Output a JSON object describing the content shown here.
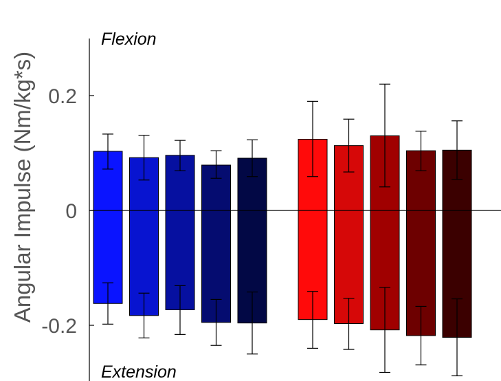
{
  "chart_data": {
    "type": "bar",
    "ylabel": "Angular Impulse (Nm/kg*s)",
    "ylim": [
      -0.3,
      0.3
    ],
    "yticks": [
      -0.2,
      0,
      0.2
    ],
    "ytick_labels": [
      "-0.2",
      "0",
      "0.2"
    ],
    "annotations": {
      "top": "Flexion",
      "bottom": "Extension"
    },
    "grid": false,
    "bars": [
      {
        "group": "blue",
        "color": "#0a14ff",
        "pos": 0.103,
        "pos_err": [
          0.072,
          0.133
        ],
        "neg": -0.162,
        "neg_err": [
          -0.198,
          -0.126
        ]
      },
      {
        "group": "blue",
        "color": "#0814d0",
        "pos": 0.092,
        "pos_err": [
          0.053,
          0.131
        ],
        "neg": -0.183,
        "neg_err": [
          -0.222,
          -0.144
        ]
      },
      {
        "group": "blue",
        "color": "#0610a0",
        "pos": 0.096,
        "pos_err": [
          0.069,
          0.122
        ],
        "neg": -0.173,
        "neg_err": [
          -0.216,
          -0.131
        ]
      },
      {
        "group": "blue",
        "color": "#050c70",
        "pos": 0.079,
        "pos_err": [
          0.056,
          0.104
        ],
        "neg": -0.195,
        "neg_err": [
          -0.235,
          -0.155
        ]
      },
      {
        "group": "blue",
        "color": "#020845",
        "pos": 0.091,
        "pos_err": [
          0.059,
          0.123
        ],
        "neg": -0.196,
        "neg_err": [
          -0.25,
          -0.142
        ]
      },
      {
        "group": "red",
        "color": "#ff0a0a",
        "pos": 0.124,
        "pos_err": [
          0.059,
          0.19
        ],
        "neg": -0.19,
        "neg_err": [
          -0.24,
          -0.141
        ]
      },
      {
        "group": "red",
        "color": "#d60808",
        "pos": 0.113,
        "pos_err": [
          0.067,
          0.159
        ],
        "neg": -0.197,
        "neg_err": [
          -0.242,
          -0.153
        ]
      },
      {
        "group": "red",
        "color": "#a00000",
        "pos": 0.13,
        "pos_err": [
          0.041,
          0.22
        ],
        "neg": -0.208,
        "neg_err": [
          -0.282,
          -0.134
        ]
      },
      {
        "group": "red",
        "color": "#6d0000",
        "pos": 0.104,
        "pos_err": [
          0.069,
          0.138
        ],
        "neg": -0.218,
        "neg_err": [
          -0.269,
          -0.167
        ]
      },
      {
        "group": "red",
        "color": "#3b0000",
        "pos": 0.105,
        "pos_err": [
          0.054,
          0.156
        ],
        "neg": -0.221,
        "neg_err": [
          -0.288,
          -0.154
        ]
      }
    ]
  }
}
